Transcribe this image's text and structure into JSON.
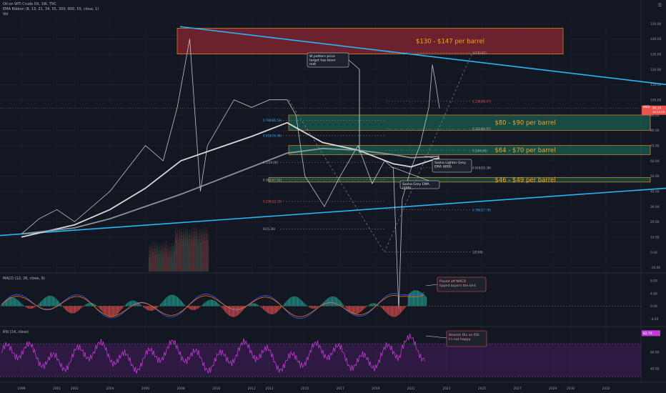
{
  "header": {
    "symbol_line": "Oil on WTI Crude Oil, 1W, TVC",
    "ema_line": "EMA Ribbon (8, 13, 21, 34, 55, 200, 600, 55, close, 1)",
    "vol_line": "Vol"
  },
  "chart_data": [
    {
      "type": "line",
      "pane": "price",
      "x_ticks": [
        "1999",
        "2001",
        "2002",
        "2004",
        "2006",
        "2008",
        "2010",
        "2012",
        "2013",
        "2015",
        "2017",
        "2019",
        "2021",
        "2023",
        "2025",
        "2027",
        "2029",
        "2030",
        "2032"
      ],
      "y_ticks": [
        "150.00",
        "140.00",
        "130.00",
        "120.00",
        "110.00",
        "100.00",
        "90.00",
        "80.00",
        "70.00",
        "60.00",
        "50.00",
        "40.00",
        "30.00",
        "20.00",
        "10.00",
        "0.00",
        "-10.00"
      ],
      "ylim": [
        -15,
        155
      ],
      "series": [
        {
          "name": "Oil",
          "color": "#e0e0e0",
          "x": [
            1999,
            2000,
            2001,
            2002,
            2003,
            2004,
            2005,
            2006,
            2007,
            2007.8,
            2008.5,
            2009.1,
            2009.5,
            2010,
            2011,
            2012,
            2013,
            2014,
            2014.5,
            2015,
            2016.1,
            2017,
            2018,
            2018.8,
            2019.5,
            2020,
            2020.3,
            2020.5,
            2021,
            2021.5,
            2022,
            2022.2,
            2022.4,
            2022.6
          ],
          "values": [
            12,
            22,
            28,
            20,
            30,
            40,
            55,
            70,
            60,
            95,
            140,
            40,
            70,
            80,
            100,
            95,
            100,
            100,
            90,
            50,
            30,
            50,
            70,
            45,
            60,
            55,
            -38,
            35,
            55,
            70,
            95,
            123,
            110,
            94.5
          ]
        },
        {
          "name": "EMA 200",
          "color": "#ececec",
          "x": [
            1999,
            2002,
            2004,
            2006,
            2008,
            2010,
            2012,
            2014,
            2016,
            2018,
            2020,
            2021,
            2022.6
          ],
          "values": [
            10,
            18,
            28,
            42,
            60,
            68,
            76,
            85,
            72,
            67,
            58,
            56,
            62
          ]
        },
        {
          "name": "EMA 600",
          "color": "#9aa0a6",
          "x": [
            1999,
            2002,
            2004,
            2006,
            2008,
            2010,
            2012,
            2014,
            2016,
            2018,
            2020,
            2021,
            2022.6
          ],
          "values": [
            12,
            16,
            22,
            30,
            38,
            47,
            56,
            65,
            68,
            67,
            64,
            62,
            63
          ]
        }
      ],
      "zones": [
        {
          "label": "$130 - $147 per barrel",
          "low": 130,
          "high": 147
        },
        {
          "label": "$80 - $90 per barrel",
          "low": 80,
          "high": 90
        },
        {
          "label": "$64 - $70 per barrel",
          "low": 64,
          "high": 70
        },
        {
          "label": "$46 - $49 per barrel",
          "low": 46,
          "high": 49
        }
      ],
      "fib_labels": [
        "0.786(86.53)",
        "0.618(76.48)",
        "0.5(59.00)",
        "0.382(47.52)",
        "0.236(33.33)",
        "0(15.26)",
        "1(130.92)",
        "0.236(98.97)",
        "0.382(80.97)",
        "0.5(66.80)",
        "0.618(55.39)",
        "0.786(27.78)",
        "1(0.09)"
      ],
      "annotations": [
        "W pattern price target has been met",
        "Sasha Lighter Grey EMA (600)",
        "Sasha Grey EMA (200)"
      ],
      "last_price": {
        "label": "WIDI",
        "value": "94.34",
        "time": "10:12:15"
      }
    },
    {
      "type": "bar",
      "pane": "macd",
      "title": "MACD (12, 26, close, 9)",
      "y_ticks": [
        "8.00",
        "4.00",
        "0.00",
        "-4.00"
      ],
      "ylim": [
        -6,
        10
      ],
      "annotation": "Pissed off MACD flipped buyers the bird"
    },
    {
      "type": "line",
      "pane": "rsi",
      "title": "RSI (14, close)",
      "y_ticks": [
        "60.00",
        "40.00"
      ],
      "ylim": [
        25,
        90
      ],
      "last_value": "82.79",
      "annotation": "Bearish Div on RSI. It's not happy."
    }
  ],
  "colors": {
    "background": "#131722",
    "trendline": "#29b6f6",
    "resistance_zone": "#8b2533",
    "support_zone": "#1b5e4f",
    "zone_text": "#f5a623",
    "rsi": "#c33bd6"
  }
}
